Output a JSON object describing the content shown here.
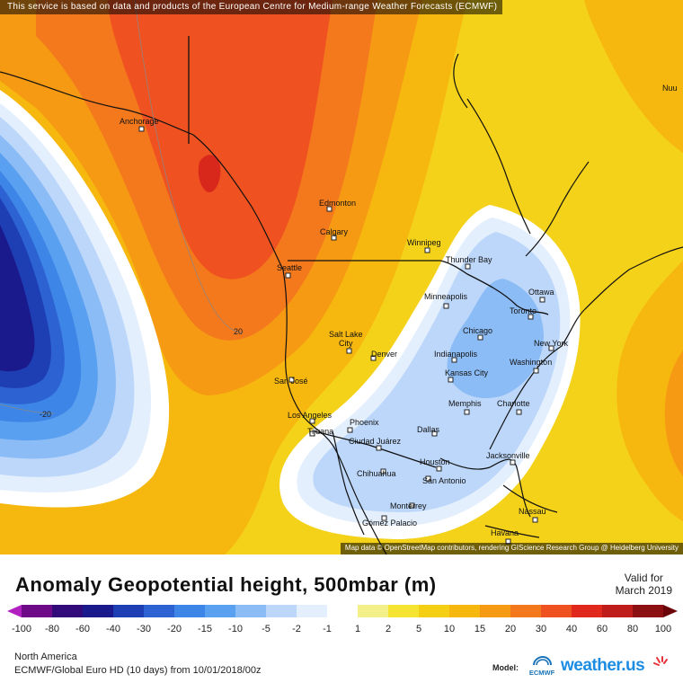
{
  "notice": "This service is based on data and products of the European Centre for Medium-range Weather Forecasts (ECMWF)",
  "attribution": "Map data © OpenStreetMap contributors, rendering GIScience Research Group @ Heidelberg University",
  "title": "Anomaly Geopotential height, 500mbar (m)",
  "valid": {
    "line1": "Valid for",
    "line2": "March 2019"
  },
  "legend": {
    "labels": [
      "-100",
      "-80",
      "-60",
      "-40",
      "-30",
      "-20",
      "-15",
      "-10",
      "-5",
      "-2",
      "-1",
      "1",
      "2",
      "5",
      "10",
      "15",
      "20",
      "30",
      "40",
      "60",
      "80",
      "100"
    ],
    "colors": [
      "#6e0a87",
      "#330a7a",
      "#1a1a8c",
      "#1e3fb4",
      "#2d62d2",
      "#3d85e6",
      "#5aa0f0",
      "#8cbcf5",
      "#bcd7fa",
      "#e4effd",
      "#ffffff",
      "#f3f08a",
      "#f5e532",
      "#f5cf14",
      "#f6b80f",
      "#f69a14",
      "#f4781c",
      "#ef5220",
      "#e0281c",
      "#bf1c1c",
      "#8c0f12"
    ],
    "end_left": "#b020c0",
    "end_right": "#6a060a"
  },
  "region": "North America",
  "model_run": "ECMWF/Global Euro HD (10 days) from 10/01/2018/00z",
  "model_label": "Model:",
  "ecmwf_text": "ECMWF",
  "brand": "weather.us",
  "contour_labels": [
    "20",
    "-20"
  ],
  "cities": [
    {
      "name": "Anchorage"
    },
    {
      "name": "Edmonton"
    },
    {
      "name": "Calgary"
    },
    {
      "name": "Winnipeg"
    },
    {
      "name": "Seattle"
    },
    {
      "name": "Thunder Bay"
    },
    {
      "name": "Minneapolis"
    },
    {
      "name": "Ottawa"
    },
    {
      "name": "Toronto"
    },
    {
      "name": "Salt Lake"
    },
    {
      "name": "City"
    },
    {
      "name": "Denver"
    },
    {
      "name": "Chicago"
    },
    {
      "name": "New York"
    },
    {
      "name": "Indianapolis"
    },
    {
      "name": "Washington"
    },
    {
      "name": "Kansas City"
    },
    {
      "name": "San José"
    },
    {
      "name": "Memphis"
    },
    {
      "name": "Charlotte"
    },
    {
      "name": "Los Angeles"
    },
    {
      "name": "Phoenix"
    },
    {
      "name": "Dallas"
    },
    {
      "name": "Tijuana"
    },
    {
      "name": "Ciudad Juárez"
    },
    {
      "name": "Jacksonville"
    },
    {
      "name": "Houston"
    },
    {
      "name": "Chihuahua"
    },
    {
      "name": "San Antonio"
    },
    {
      "name": "Monterrey"
    },
    {
      "name": "Nassau"
    },
    {
      "name": "Gómez Palacio"
    },
    {
      "name": "Havana"
    },
    {
      "name": "Nuu"
    }
  ]
}
